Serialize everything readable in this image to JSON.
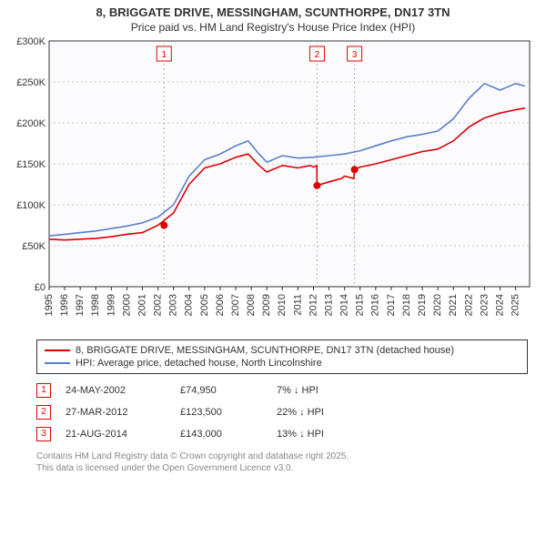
{
  "title_line1": "8, BRIGGATE DRIVE, MESSINGHAM, SCUNTHORPE, DN17 3TN",
  "title_line2": "Price paid vs. HM Land Registry's House Price Index (HPI)",
  "chart": {
    "type": "line",
    "background_color": "#fbfbfe",
    "grid_color": "#cccccc",
    "axis_color": "#333333",
    "font_size_axis": 11,
    "xlim": [
      1995,
      2025.9
    ],
    "ylim": [
      0,
      300000
    ],
    "ytick_step": 50000,
    "y_ticks": [
      "£0",
      "£50K",
      "£100K",
      "£150K",
      "£200K",
      "£250K",
      "£300K"
    ],
    "x_ticks": [
      1995,
      1996,
      1997,
      1998,
      1999,
      2000,
      2001,
      2002,
      2003,
      2004,
      2005,
      2006,
      2007,
      2008,
      2009,
      2010,
      2011,
      2012,
      2013,
      2014,
      2015,
      2016,
      2017,
      2018,
      2019,
      2020,
      2021,
      2022,
      2023,
      2024,
      2025
    ],
    "series": [
      {
        "name": "price_paid",
        "label": "8, BRIGGATE DRIVE, MESSINGHAM, SCUNTHORPE, DN17 3TN (detached house)",
        "color": "#e00000",
        "line_width": 1.6,
        "data": [
          [
            1995,
            58000
          ],
          [
            1996,
            57000
          ],
          [
            1997,
            58000
          ],
          [
            1998,
            59000
          ],
          [
            1999,
            61000
          ],
          [
            2000,
            64000
          ],
          [
            2001,
            66000
          ],
          [
            2002,
            75000
          ],
          [
            2003,
            90000
          ],
          [
            2004,
            125000
          ],
          [
            2005,
            145000
          ],
          [
            2006,
            150000
          ],
          [
            2007,
            158000
          ],
          [
            2007.8,
            162000
          ],
          [
            2008.5,
            148000
          ],
          [
            2009,
            140000
          ],
          [
            2010,
            148000
          ],
          [
            2011,
            145000
          ],
          [
            2011.8,
            148000
          ],
          [
            2012,
            146000
          ],
          [
            2012.22,
            148000
          ],
          [
            2012.23,
            123500
          ],
          [
            2013,
            128000
          ],
          [
            2013.8,
            132000
          ],
          [
            2014,
            135000
          ],
          [
            2014.6,
            132000
          ],
          [
            2014.63,
            143000
          ],
          [
            2015,
            146000
          ],
          [
            2016,
            150000
          ],
          [
            2017,
            155000
          ],
          [
            2018,
            160000
          ],
          [
            2019,
            165000
          ],
          [
            2020,
            168000
          ],
          [
            2021,
            178000
          ],
          [
            2022,
            195000
          ],
          [
            2023,
            206000
          ],
          [
            2024,
            212000
          ],
          [
            2025,
            216000
          ],
          [
            2025.6,
            218000
          ]
        ]
      },
      {
        "name": "hpi",
        "label": "HPI: Average price, detached house, North Lincolnshire",
        "color": "#5b7fc7",
        "line_width": 1.6,
        "data": [
          [
            1995,
            62000
          ],
          [
            1996,
            64000
          ],
          [
            1997,
            66000
          ],
          [
            1998,
            68000
          ],
          [
            1999,
            71000
          ],
          [
            2000,
            74000
          ],
          [
            2001,
            78000
          ],
          [
            2002,
            85000
          ],
          [
            2003,
            100000
          ],
          [
            2004,
            135000
          ],
          [
            2005,
            155000
          ],
          [
            2006,
            162000
          ],
          [
            2007,
            172000
          ],
          [
            2007.8,
            178000
          ],
          [
            2008.5,
            162000
          ],
          [
            2009,
            152000
          ],
          [
            2010,
            160000
          ],
          [
            2011,
            157000
          ],
          [
            2012,
            158000
          ],
          [
            2013,
            160000
          ],
          [
            2014,
            162000
          ],
          [
            2015,
            166000
          ],
          [
            2016,
            172000
          ],
          [
            2017,
            178000
          ],
          [
            2018,
            183000
          ],
          [
            2019,
            186000
          ],
          [
            2020,
            190000
          ],
          [
            2021,
            205000
          ],
          [
            2022,
            230000
          ],
          [
            2023,
            248000
          ],
          [
            2024,
            240000
          ],
          [
            2025,
            248000
          ],
          [
            2025.6,
            245000
          ]
        ]
      }
    ],
    "sale_markers": [
      {
        "n": "1",
        "x": 2002.39,
        "y": 74950
      },
      {
        "n": "2",
        "x": 2012.23,
        "y": 123500
      },
      {
        "n": "3",
        "x": 2014.64,
        "y": 143000
      }
    ],
    "marker_box_color": "#e00000",
    "marker_guide_color": "#d9a0a0",
    "marker_guide_dash": "2,3"
  },
  "legend": {
    "items": [
      {
        "color": "#e00000",
        "label": "8, BRIGGATE DRIVE, MESSINGHAM, SCUNTHORPE, DN17 3TN (detached house)"
      },
      {
        "color": "#5b7fc7",
        "label": "HPI: Average price, detached house, North Lincolnshire"
      }
    ]
  },
  "sales": [
    {
      "n": "1",
      "date": "24-MAY-2002",
      "price": "£74,950",
      "hpi": "7% ↓ HPI"
    },
    {
      "n": "2",
      "date": "27-MAR-2012",
      "price": "£123,500",
      "hpi": "22% ↓ HPI"
    },
    {
      "n": "3",
      "date": "21-AUG-2014",
      "price": "£143,000",
      "hpi": "13% ↓ HPI"
    }
  ],
  "footer_line1": "Contains HM Land Registry data © Crown copyright and database right 2025.",
  "footer_line2": "This data is licensed under the Open Government Licence v3.0."
}
